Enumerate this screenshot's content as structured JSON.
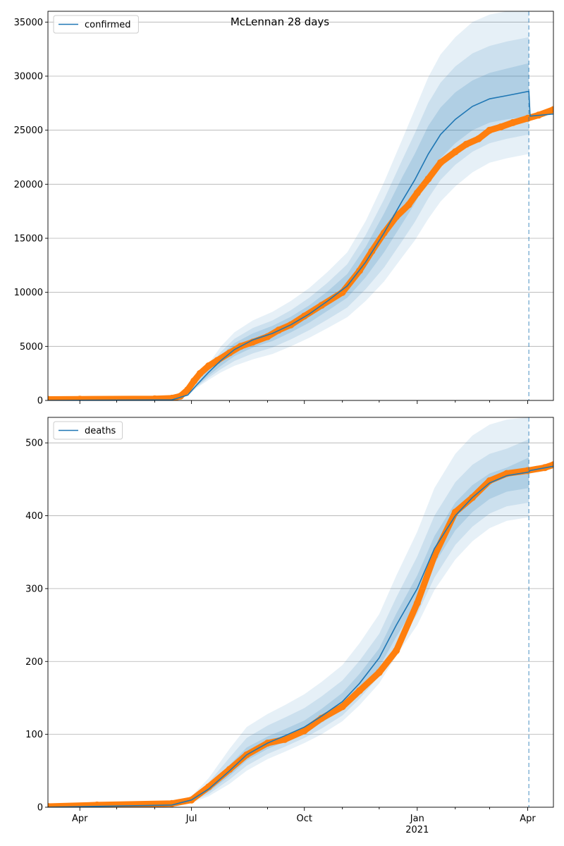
{
  "figure": {
    "title": "McLennan 28 days"
  },
  "chart_data": [
    {
      "type": "line",
      "panel": "top",
      "title": "",
      "xlabel": "",
      "ylabel": "",
      "legend": "top-left",
      "grid": "horizontal",
      "xlim": [
        "2020-03-06",
        "2021-04-22"
      ],
      "ylim": [
        0,
        36000
      ],
      "yticks": [
        0,
        5000,
        10000,
        15000,
        20000,
        25000,
        30000,
        35000
      ],
      "forecast_start": "2021-04-02",
      "series": [
        {
          "name": "confirmed",
          "role": "model",
          "color": "#1f77b4",
          "x": [
            "2020-03-06",
            "2020-06-15",
            "2020-06-28",
            "2020-07-05",
            "2020-07-15",
            "2020-07-25",
            "2020-08-05",
            "2020-08-20",
            "2020-09-05",
            "2020-09-20",
            "2020-10-05",
            "2020-10-20",
            "2020-11-05",
            "2020-11-20",
            "2020-12-05",
            "2020-12-20",
            "2020-12-30",
            "2021-01-10",
            "2021-01-20",
            "2021-02-01",
            "2021-02-15",
            "2021-03-01",
            "2021-03-15",
            "2021-04-02",
            "2021-04-03",
            "2021-04-22"
          ],
          "y": [
            0,
            50,
            500,
            1400,
            2600,
            3700,
            4700,
            5600,
            6200,
            7000,
            8000,
            9200,
            10600,
            12800,
            15500,
            18500,
            20400,
            22800,
            24600,
            26000,
            27200,
            27900,
            28200,
            28600,
            26300,
            26500
          ]
        },
        {
          "name": "",
          "role": "observed",
          "color": "#ff7f0e",
          "x": [
            "2020-03-06",
            "2020-04-01",
            "2020-06-01",
            "2020-06-15",
            "2020-06-22",
            "2020-06-28",
            "2020-07-03",
            "2020-07-08",
            "2020-07-15",
            "2020-07-22",
            "2020-08-01",
            "2020-08-10",
            "2020-08-20",
            "2020-09-01",
            "2020-09-10",
            "2020-09-20",
            "2020-10-01",
            "2020-10-15",
            "2020-11-01",
            "2020-11-15",
            "2020-11-25",
            "2020-12-05",
            "2020-12-15",
            "2020-12-25",
            "2021-01-01",
            "2021-01-10",
            "2021-01-20",
            "2021-02-01",
            "2021-02-10",
            "2021-02-20",
            "2021-03-01",
            "2021-03-10",
            "2021-03-20",
            "2021-04-01",
            "2021-04-10",
            "2021-04-22"
          ],
          "y": [
            100,
            120,
            150,
            200,
            400,
            1000,
            1800,
            2500,
            3200,
            3700,
            4400,
            5000,
            5400,
            5900,
            6500,
            7000,
            7800,
            8800,
            10000,
            12000,
            13800,
            15500,
            17000,
            18100,
            19200,
            20500,
            22000,
            23000,
            23700,
            24200,
            25000,
            25300,
            25700,
            26100,
            26400,
            26900
          ]
        }
      ],
      "bands": {
        "color": "#1f77b4",
        "x": [
          "2020-03-06",
          "2020-06-15",
          "2020-06-28",
          "2020-07-05",
          "2020-07-15",
          "2020-07-25",
          "2020-08-05",
          "2020-08-20",
          "2020-09-05",
          "2020-09-20",
          "2020-10-05",
          "2020-10-20",
          "2020-11-05",
          "2020-11-20",
          "2020-12-05",
          "2020-12-20",
          "2020-12-30",
          "2021-01-10",
          "2021-01-20",
          "2021-02-01",
          "2021-02-15",
          "2021-03-01",
          "2021-03-15",
          "2021-04-02"
        ],
        "levels": [
          {
            "lower": [
              0,
              40,
              420,
              1150,
              1900,
              2600,
              3200,
              3800,
              4300,
              5000,
              5800,
              6700,
              7700,
              9200,
              11000,
              13300,
              14800,
              16800,
              18400,
              19800,
              21100,
              22000,
              22400,
              22800
            ],
            "upper": [
              0,
              60,
              600,
              1700,
              3400,
              5000,
              6300,
              7400,
              8200,
              9200,
              10400,
              11900,
              13700,
              16600,
              20200,
              24200,
              26900,
              29900,
              32000,
              33600,
              35000,
              35700,
              36000,
              36200
            ]
          },
          {
            "lower": [
              0,
              43,
              450,
              1230,
              2100,
              2900,
              3650,
              4350,
              4900,
              5650,
              6500,
              7500,
              8600,
              10300,
              12300,
              14800,
              16500,
              18700,
              20400,
              21800,
              23000,
              23800,
              24200,
              24600
            ],
            "upper": [
              0,
              57,
              560,
              1580,
              3100,
              4500,
              5700,
              6700,
              7400,
              8350,
              9500,
              10900,
              12600,
              15300,
              18600,
              22300,
              24700,
              27500,
              29400,
              30900,
              32100,
              32800,
              33200,
              33600
            ]
          },
          {
            "lower": [
              0,
              46,
              470,
              1300,
              2300,
              3200,
              4100,
              4900,
              5500,
              6300,
              7200,
              8300,
              9500,
              11400,
              13700,
              16400,
              18200,
              20600,
              22400,
              23800,
              25000,
              25700,
              26000,
              26300
            ],
            "upper": [
              0,
              54,
              530,
              1500,
              2900,
              4200,
              5300,
              6200,
              6900,
              7750,
              8800,
              10100,
              11700,
              14200,
              17300,
              20700,
              22800,
              25400,
              27100,
              28500,
              29600,
              30300,
              30700,
              31200
            ]
          }
        ]
      }
    },
    {
      "type": "line",
      "panel": "bottom",
      "title": "",
      "xlabel": "",
      "ylabel": "",
      "legend": "top-left",
      "grid": "horizontal",
      "xlim": [
        "2020-03-06",
        "2021-04-22"
      ],
      "ylim": [
        0,
        535
      ],
      "yticks": [
        0,
        100,
        200,
        300,
        400,
        500
      ],
      "xticks": [
        {
          "date": "2020-04-01",
          "label": "Apr"
        },
        {
          "date": "2020-07-01",
          "label": "Jul"
        },
        {
          "date": "2020-10-01",
          "label": "Oct"
        },
        {
          "date": "2021-01-01",
          "label": "Jan",
          "sublabel": "2021"
        },
        {
          "date": "2021-04-01",
          "label": "Apr"
        }
      ],
      "forecast_start": "2021-04-02",
      "series": [
        {
          "name": "deaths",
          "role": "model",
          "color": "#1f77b4",
          "x": [
            "2020-03-06",
            "2020-06-15",
            "2020-07-01",
            "2020-07-15",
            "2020-08-01",
            "2020-08-15",
            "2020-09-01",
            "2020-09-15",
            "2020-10-01",
            "2020-10-15",
            "2020-11-01",
            "2020-11-15",
            "2020-12-01",
            "2020-12-15",
            "2021-01-01",
            "2021-01-15",
            "2021-02-01",
            "2021-02-15",
            "2021-03-01",
            "2021-03-15",
            "2021-04-02",
            "2021-04-03",
            "2021-04-22"
          ],
          "y": [
            0,
            3,
            10,
            25,
            50,
            72,
            88,
            98,
            110,
            125,
            145,
            170,
            205,
            250,
            300,
            355,
            400,
            425,
            445,
            455,
            460,
            462,
            468
          ]
        },
        {
          "name": "",
          "role": "observed",
          "color": "#ff7f0e",
          "x": [
            "2020-03-06",
            "2020-04-15",
            "2020-06-15",
            "2020-07-01",
            "2020-07-15",
            "2020-08-01",
            "2020-08-15",
            "2020-09-01",
            "2020-09-15",
            "2020-10-01",
            "2020-10-15",
            "2020-11-01",
            "2020-11-15",
            "2020-12-01",
            "2020-12-15",
            "2021-01-01",
            "2021-01-15",
            "2021-02-01",
            "2021-02-15",
            "2021-03-01",
            "2021-03-15",
            "2021-04-01",
            "2021-04-15",
            "2021-04-22"
          ],
          "y": [
            1,
            3,
            5,
            10,
            28,
            52,
            72,
            88,
            93,
            105,
            122,
            138,
            160,
            185,
            215,
            280,
            345,
            405,
            425,
            448,
            458,
            462,
            466,
            470
          ]
        }
      ],
      "bands": {
        "color": "#1f77b4",
        "x": [
          "2020-03-06",
          "2020-06-15",
          "2020-07-01",
          "2020-07-15",
          "2020-08-01",
          "2020-08-15",
          "2020-09-01",
          "2020-09-15",
          "2020-10-01",
          "2020-10-15",
          "2020-11-01",
          "2020-11-15",
          "2020-12-01",
          "2020-12-15",
          "2021-01-01",
          "2021-01-15",
          "2021-02-01",
          "2021-02-15",
          "2021-03-01",
          "2021-03-15",
          "2021-04-02"
        ],
        "levels": [
          {
            "lower": [
              0,
              2,
              6,
              15,
              32,
              50,
              66,
              76,
              88,
              100,
              118,
              140,
              170,
              208,
              250,
              298,
              340,
              365,
              383,
              393,
              398
            ],
            "upper": [
              0,
              5,
              15,
              40,
              80,
              110,
              128,
              140,
              155,
              172,
              195,
              225,
              265,
              318,
              378,
              438,
              485,
              510,
              525,
              532,
              535
            ]
          },
          {
            "lower": [
              0,
              2.5,
              7.5,
              18,
              38,
              57,
              73,
              83,
              95,
              108,
              126,
              149,
              180,
              220,
              265,
              315,
              360,
              385,
              403,
              413,
              418
            ],
            "upper": [
              0,
              4.2,
              13,
              34,
              68,
              95,
              112,
              123,
              136,
              152,
              174,
              201,
              238,
              288,
              344,
              400,
              446,
              470,
              485,
              492,
              505
            ]
          },
          {
            "lower": [
              0,
              2.8,
              8.5,
              21,
              43,
              64,
              80,
              90,
              102,
              116,
              134,
              158,
              192,
              234,
              281,
              334,
              380,
              405,
              423,
              433,
              438
            ],
            "upper": [
              0,
              3.6,
              11.5,
              29,
              58,
              82,
              97,
              107,
              119,
              135,
              157,
              183,
              218,
              266,
              318,
              372,
              418,
              442,
              458,
              466,
              480
            ]
          }
        ]
      }
    }
  ]
}
